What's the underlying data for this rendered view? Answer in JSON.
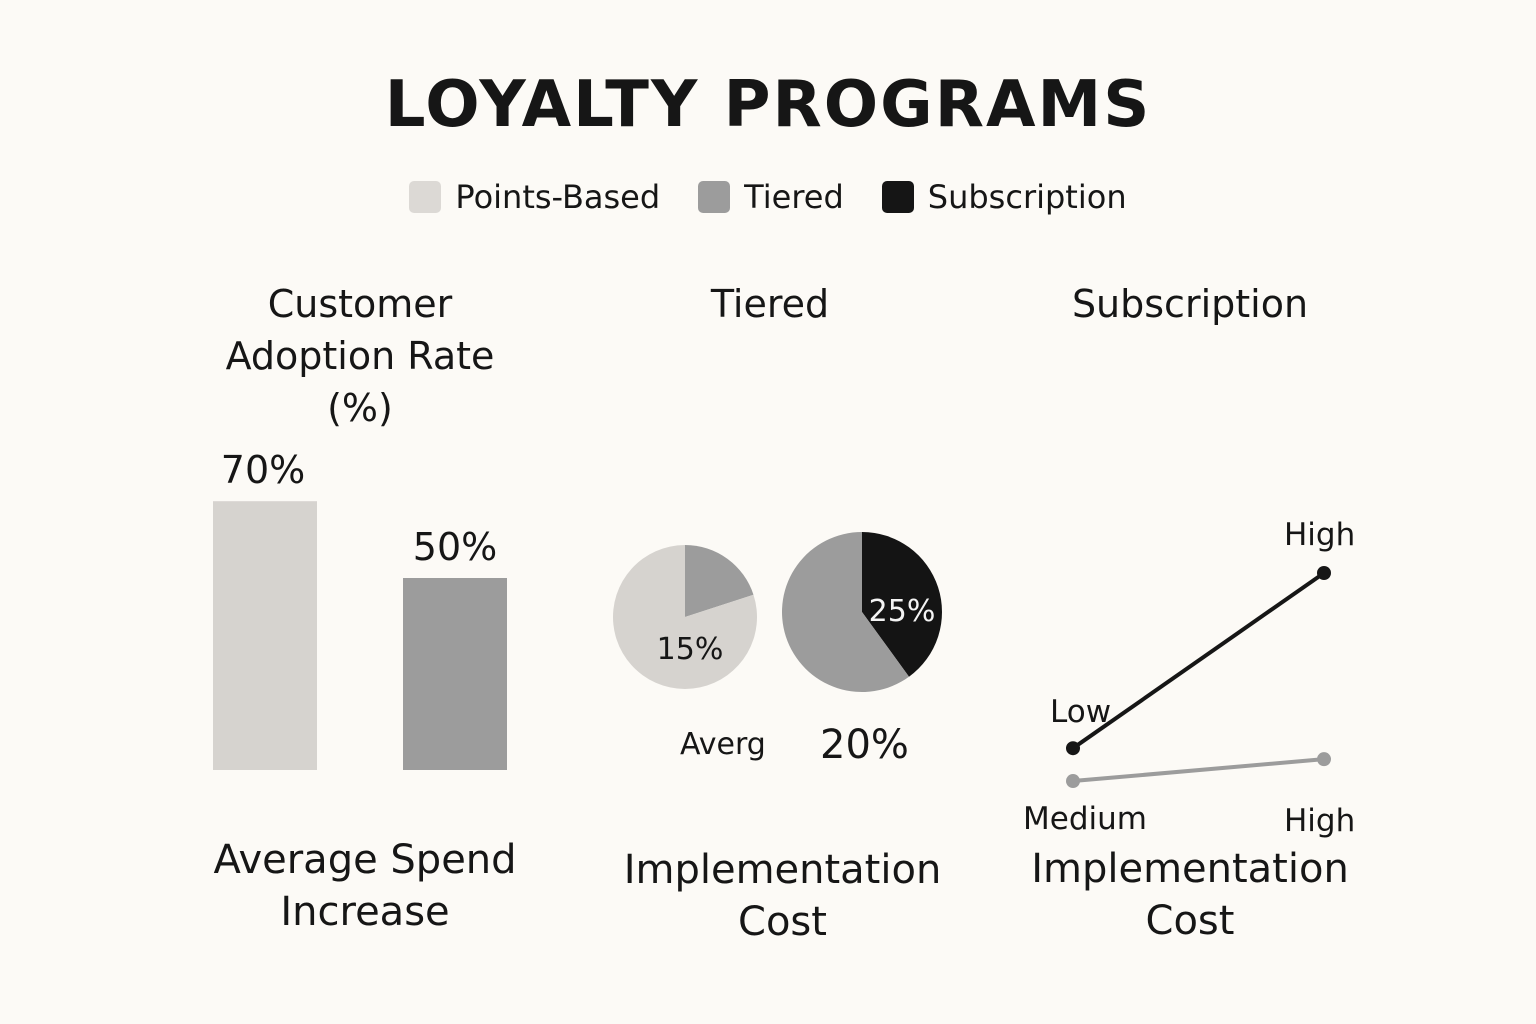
{
  "title": "LOYALTY PROGRAMS",
  "legend": [
    {
      "label": "Points-Based",
      "color": "#dcd9d5"
    },
    {
      "label": "Tiered",
      "color": "#9c9c9c"
    },
    {
      "label": "Subscription",
      "color": "#151515"
    }
  ],
  "chart_data": [
    {
      "type": "bar",
      "title": "Customer Adoption Rate (%)",
      "xlabel": "Average Spend Increase",
      "categories": [
        "",
        ""
      ],
      "values": [
        70,
        50
      ],
      "data_labels": [
        "70%",
        "50%"
      ],
      "colors": [
        "#d6d3cf",
        "#9c9c9c"
      ],
      "ylim": [
        0,
        100
      ]
    },
    {
      "type": "pie",
      "title": "Tiered",
      "xlabel": "Implementation Cost",
      "pies": [
        {
          "slices": [
            {
              "value": 80,
              "color": "#d6d3cf"
            },
            {
              "value": 20,
              "color": "#9c9c9c"
            }
          ],
          "label": "15%"
        },
        {
          "slices": [
            {
              "value": 40,
              "color": "#141414"
            },
            {
              "value": 60,
              "color": "#9c9c9c"
            }
          ],
          "label": "25%"
        }
      ],
      "annotations": [
        "Averg",
        "20%"
      ]
    },
    {
      "type": "line",
      "title": "Subscription",
      "xlabel": "Implementation Cost",
      "series": [
        {
          "points": [
            {
              "x": 0,
              "y": 0.2
            },
            {
              "x": 1,
              "y": 1.0
            }
          ],
          "color": "#161616",
          "labels": [
            "Low",
            "High"
          ]
        },
        {
          "points": [
            {
              "x": 0,
              "y": 0.05
            },
            {
              "x": 1,
              "y": 0.15
            }
          ],
          "color": "#9c9c9c",
          "labels": [
            "Medium",
            "High"
          ]
        }
      ],
      "xlim": [
        0,
        1
      ],
      "ylim": [
        0,
        1
      ]
    }
  ]
}
